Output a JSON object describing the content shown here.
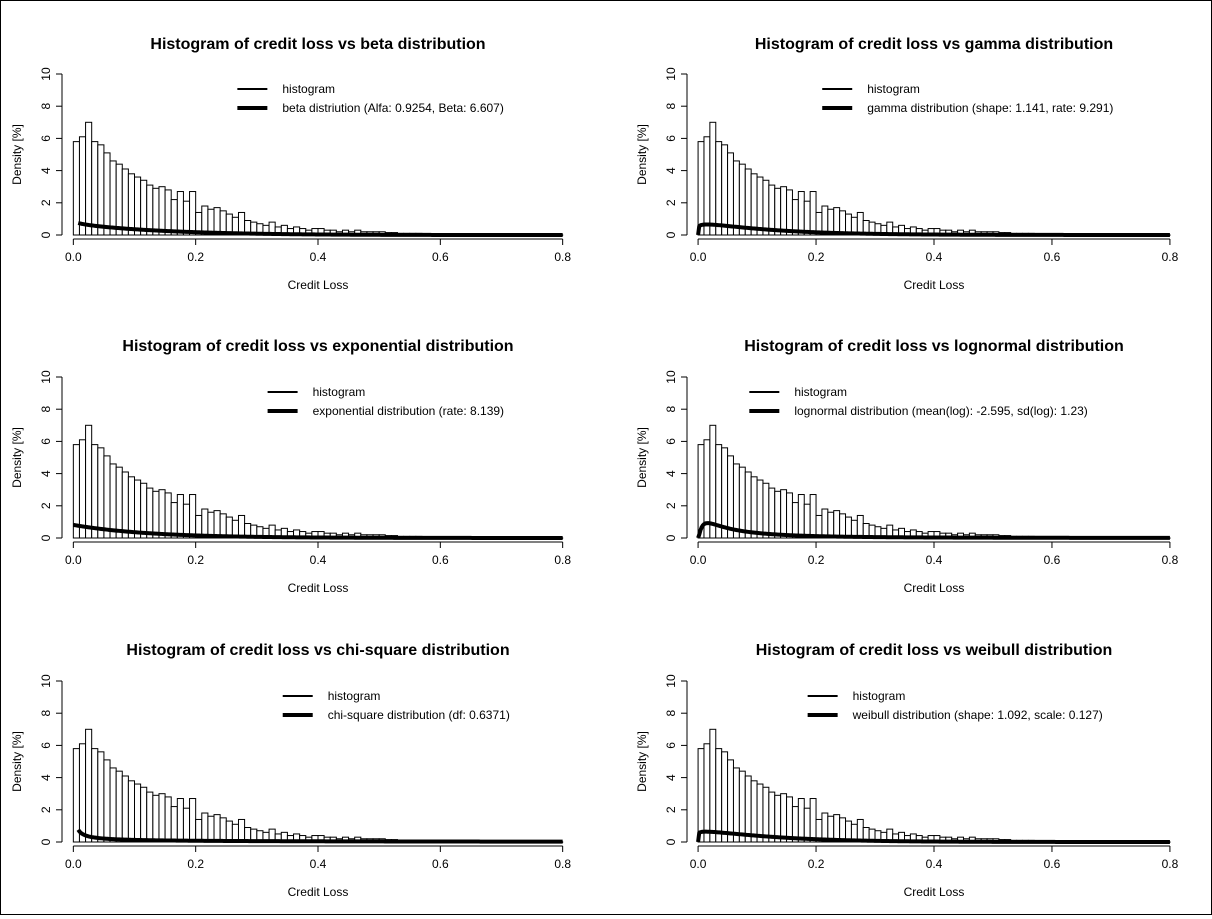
{
  "chart_data": [
    {
      "type": "histogram+line",
      "title": "Histogram of credit loss vs beta distribution",
      "xlabel": "Credit Loss",
      "ylabel": "Density [%]",
      "xlim": [
        0,
        0.8
      ],
      "ylim": [
        0,
        10
      ],
      "xticks": [
        "0.0",
        "0.2",
        "0.4",
        "0.6",
        "0.8"
      ],
      "yticks": [
        "0",
        "2",
        "4",
        "6",
        "8",
        "10"
      ],
      "legend": [
        "histogram",
        "beta distriution (Alfa: 0.9254, Beta: 6.607)"
      ],
      "legend_position": "top-right",
      "distribution": {
        "family": "beta",
        "params": {
          "alpha": 0.9254,
          "beta": 6.607
        }
      }
    },
    {
      "type": "histogram+line",
      "title": "Histogram of credit loss vs gamma distribution",
      "xlabel": "Credit Loss",
      "ylabel": "Density [%]",
      "xlim": [
        0,
        0.8
      ],
      "ylim": [
        0,
        10
      ],
      "xticks": [
        "0.0",
        "0.2",
        "0.4",
        "0.6",
        "0.8"
      ],
      "yticks": [
        "0",
        "2",
        "4",
        "6",
        "8",
        "10"
      ],
      "legend": [
        "histogram",
        "gamma distribution (shape: 1.141, rate: 9.291)"
      ],
      "legend_position": "top-right",
      "distribution": {
        "family": "gamma",
        "params": {
          "shape": 1.141,
          "rate": 9.291
        }
      }
    },
    {
      "type": "histogram+line",
      "title": "Histogram of credit loss vs exponential distribution",
      "xlabel": "Credit Loss",
      "ylabel": "Density [%]",
      "xlim": [
        0,
        0.8
      ],
      "ylim": [
        0,
        10
      ],
      "xticks": [
        "0.0",
        "0.2",
        "0.4",
        "0.6",
        "0.8"
      ],
      "yticks": [
        "0",
        "2",
        "4",
        "6",
        "8",
        "10"
      ],
      "legend": [
        "histogram",
        "exponential distribution (rate: 8.139)"
      ],
      "legend_position": "top-right",
      "distribution": {
        "family": "exponential",
        "params": {
          "rate": 8.139
        }
      }
    },
    {
      "type": "histogram+line",
      "title": "Histogram of credit loss vs lognormal distribution",
      "xlabel": "Credit Loss",
      "ylabel": "Density [%]",
      "xlim": [
        0,
        0.8
      ],
      "ylim": [
        0,
        10
      ],
      "xticks": [
        "0.0",
        "0.2",
        "0.4",
        "0.6",
        "0.8"
      ],
      "yticks": [
        "0",
        "2",
        "4",
        "6",
        "8",
        "10"
      ],
      "legend": [
        "histogram",
        "lognormal distribution (mean(log): -2.595, sd(log): 1.23)"
      ],
      "legend_position": "top-right",
      "distribution": {
        "family": "lognormal",
        "params": {
          "meanlog": -2.595,
          "sdlog": 1.23
        }
      }
    },
    {
      "type": "histogram+line",
      "title": "Histogram of credit loss vs chi-square distribution",
      "xlabel": "Credit Loss",
      "ylabel": "Density [%]",
      "xlim": [
        0,
        0.8
      ],
      "ylim": [
        0,
        10
      ],
      "xticks": [
        "0.0",
        "0.2",
        "0.4",
        "0.6",
        "0.8"
      ],
      "yticks": [
        "0",
        "2",
        "4",
        "6",
        "8",
        "10"
      ],
      "legend": [
        "histogram",
        "chi-square distribution (df: 0.6371)"
      ],
      "legend_position": "top-right",
      "distribution": {
        "family": "chisq",
        "params": {
          "df": 0.6371
        }
      }
    },
    {
      "type": "histogram+line",
      "title": "Histogram of credit loss vs weibull distribution",
      "xlabel": "Credit Loss",
      "ylabel": "Density [%]",
      "xlim": [
        0,
        0.8
      ],
      "ylim": [
        0,
        10
      ],
      "xticks": [
        "0.0",
        "0.2",
        "0.4",
        "0.6",
        "0.8"
      ],
      "yticks": [
        "0",
        "2",
        "4",
        "6",
        "8",
        "10"
      ],
      "legend": [
        "histogram",
        "weibull distribution (shape: 1.092, scale: 0.127)"
      ],
      "legend_position": "top-right",
      "distribution": {
        "family": "weibull",
        "params": {
          "shape": 1.092,
          "scale": 0.127
        }
      }
    }
  ],
  "histogram": {
    "bin_width": 0.01,
    "bin_start": 0,
    "densities": [
      5.8,
      6.1,
      7.0,
      5.8,
      5.6,
      5.1,
      4.6,
      4.4,
      4.1,
      3.8,
      3.6,
      3.4,
      3.1,
      2.9,
      3.0,
      2.8,
      2.2,
      2.7,
      2.1,
      2.7,
      1.4,
      1.8,
      1.6,
      1.7,
      1.5,
      1.3,
      1.1,
      1.4,
      0.9,
      0.8,
      0.7,
      0.6,
      0.8,
      0.5,
      0.6,
      0.4,
      0.5,
      0.4,
      0.3,
      0.4,
      0.4,
      0.3,
      0.3,
      0.2,
      0.3,
      0.2,
      0.3,
      0.2,
      0.2,
      0.2,
      0.2,
      0.15,
      0.15,
      0.1,
      0.1,
      0.1,
      0.1,
      0.08,
      0.08,
      0.05,
      0.05,
      0.05,
      0.05,
      0.03,
      0.03,
      0.03,
      0.03,
      0.02,
      0.02,
      0.02,
      0.02,
      0.02,
      0.02,
      0.01,
      0.01,
      0.01,
      0.01,
      0.01,
      0.01,
      0.01
    ]
  }
}
